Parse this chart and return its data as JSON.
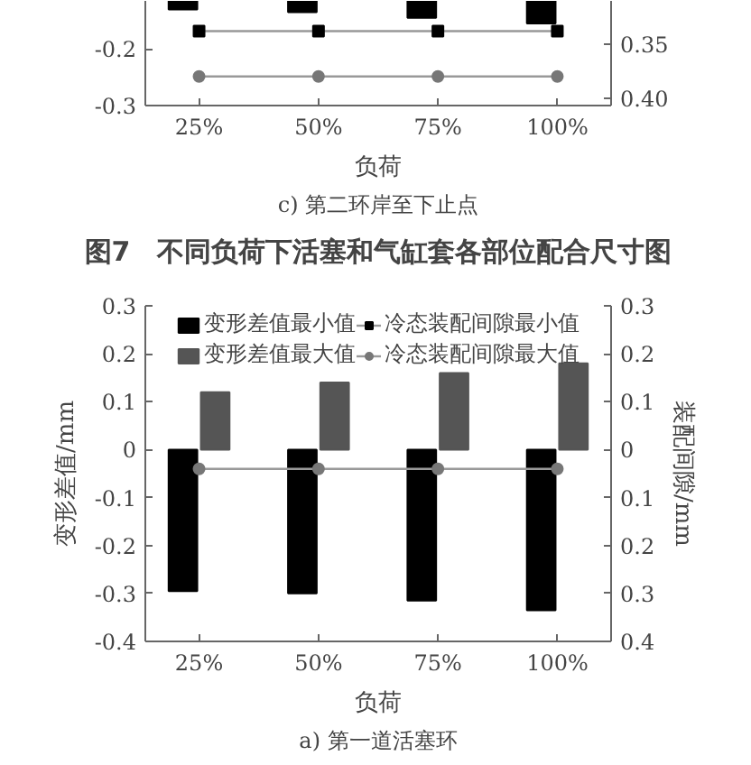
{
  "chart_data": [
    {
      "type": "bar",
      "xlabel": "负荷",
      "categories": [
        "25%",
        "50%",
        "75%",
        "100%"
      ],
      "ylim": [
        -0.3,
        -0.115
      ],
      "yticks": [
        -0.2,
        -0.3
      ],
      "y2lim": [
        0.407,
        0.31
      ],
      "y2ticks": [
        0.35,
        {
          "value": 0.4,
          "label": "0.40"
        }
      ],
      "legend": false,
      "grid": false,
      "annotations": [
        "c) 第二环岸至下止点",
        "图7　不同负荷下活塞和气缸套各部位配合尺寸图"
      ],
      "series": [
        {
          "color": "#000000",
          "values": [
            -0.13,
            -0.135,
            -0.145,
            -0.155
          ]
        },
        {
          "type": "line",
          "axis": "y2",
          "marker": "square",
          "color": "#000000",
          "values": [
            0.338,
            0.338,
            0.338,
            0.338
          ]
        },
        {
          "type": "line",
          "axis": "y2",
          "marker": "circle",
          "color": "#777777",
          "values": [
            0.38,
            0.38,
            0.38,
            0.38
          ]
        }
      ]
    },
    {
      "type": "bar",
      "xlabel": "负荷",
      "ylabel": "变形差值/mm",
      "y2label": "装配间隙/mm",
      "categories": [
        "25%",
        "50%",
        "75%",
        "100%"
      ],
      "ylim": [
        -0.4,
        0.3
      ],
      "yticks": [
        -0.4,
        -0.3,
        -0.2,
        -0.1,
        0,
        0.1,
        0.2,
        0.3
      ],
      "y2lim": [
        0.4,
        -0.3
      ],
      "y2ticks": [
        {
          "value": -0.3,
          "label": "0.3"
        },
        {
          "value": -0.2,
          "label": "0.2"
        },
        {
          "value": -0.1,
          "label": "0.1"
        },
        0,
        0.1,
        0.2,
        0.3,
        0.4
      ],
      "legend": "top",
      "grid": false,
      "annotations": [
        "a) 第一道活塞环"
      ],
      "series": [
        {
          "name": "变形差值最小值",
          "color": "#000000",
          "values": [
            -0.295,
            -0.3,
            -0.315,
            -0.335
          ]
        },
        {
          "name": "变形差值最大值",
          "color": "#555555",
          "values": [
            0.12,
            0.14,
            0.16,
            0.18
          ]
        },
        {
          "type": "line",
          "axis": "y2",
          "name": "冷态装配间隙最小值",
          "marker": "square",
          "color": "#000000",
          "values": [
            null,
            null,
            null,
            null
          ]
        },
        {
          "type": "line",
          "axis": "y2",
          "name": "冷态装配间隙最大值",
          "marker": "circle",
          "color": "#777777",
          "values": [
            0.04,
            0.04,
            0.04,
            0.04
          ]
        }
      ]
    }
  ]
}
